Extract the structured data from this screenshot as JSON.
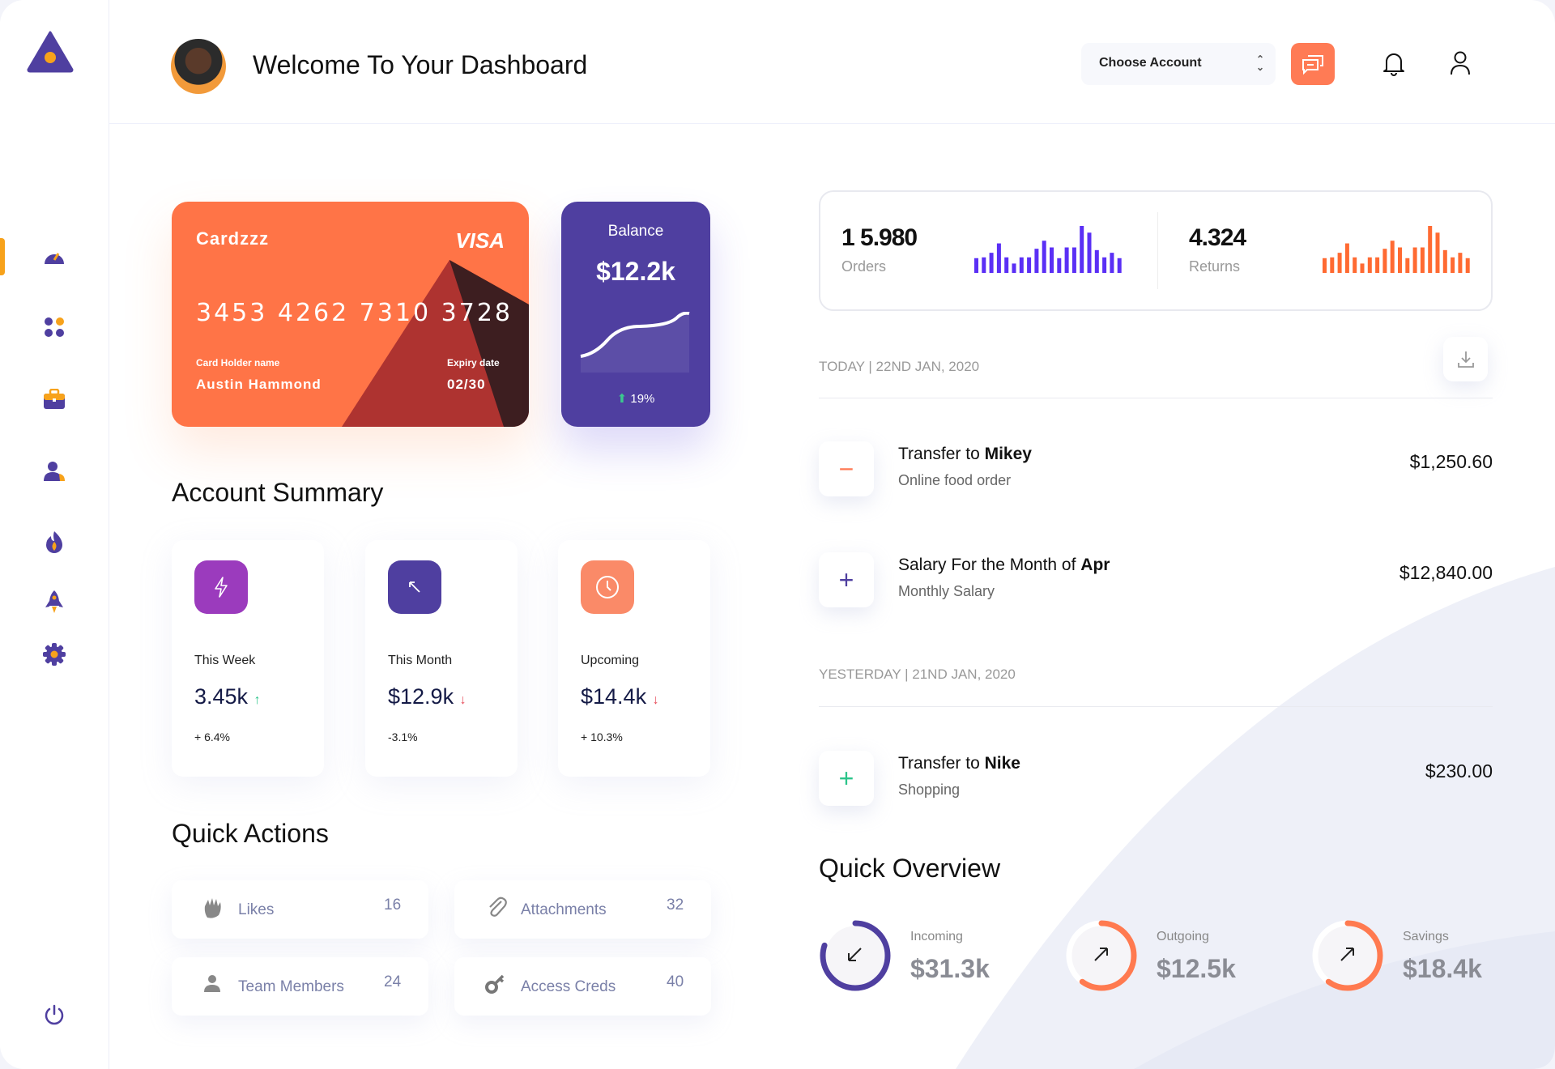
{
  "header": {
    "title": "Welcome To Your Dashboard",
    "account_select": "Choose Account"
  },
  "sidebar": {
    "items": [
      "dashboard-icon",
      "apps-icon",
      "briefcase-icon",
      "users-icon",
      "fire-icon",
      "rocket-icon",
      "settings-icon"
    ],
    "active": 0,
    "logout": "power-icon"
  },
  "card": {
    "name": "Cardzzz",
    "brand": "VISA",
    "number": "3453 4262 7310 3728",
    "holder_label": "Card Holder name",
    "holder": "Austin Hammond",
    "expiry_label": "Expiry date",
    "expiry": "02/30",
    "color": "#ff7447"
  },
  "balance": {
    "title": "Balance",
    "value": "$12.2k",
    "change": "19%",
    "color": "#4f3fa0"
  },
  "account_summary": {
    "title": "Account Summary",
    "items": [
      {
        "label": "This Week",
        "value": "3.45k",
        "trend": "up",
        "change": "+ 6.4%",
        "color": "#9b3bbd",
        "icon": "lightning-icon"
      },
      {
        "label": "This Month",
        "value": "$12.9k",
        "trend": "down",
        "change": "-3.1%",
        "color": "#4f3fa0",
        "icon": "arrow-up-left-icon"
      },
      {
        "label": "Upcoming",
        "value": "$14.4k",
        "trend": "down",
        "change": "+ 10.3%",
        "color": "#fa8a68",
        "icon": "clock-icon"
      }
    ]
  },
  "quick_actions": {
    "title": "Quick Actions",
    "items": [
      {
        "label": "Likes",
        "count": "16",
        "icon": "clap-icon"
      },
      {
        "label": "Attachments",
        "count": "32",
        "icon": "paperclip-icon"
      },
      {
        "label": "Team Members",
        "count": "24",
        "icon": "user-icon"
      },
      {
        "label": "Access Creds",
        "count": "40",
        "icon": "key-icon"
      }
    ]
  },
  "stats": {
    "orders": {
      "value": "1 5.980",
      "label": "Orders",
      "color": "#5a2ff5",
      "bars": [
        55,
        58,
        75,
        110,
        58,
        35,
        58,
        58,
        90,
        120,
        95,
        55,
        95,
        95,
        175,
        150,
        85,
        58,
        75,
        55
      ]
    },
    "returns": {
      "value": "4.324",
      "label": "Returns",
      "color": "#ff6a32",
      "bars": [
        55,
        58,
        75,
        110,
        58,
        35,
        58,
        58,
        90,
        120,
        95,
        55,
        95,
        95,
        175,
        150,
        85,
        58,
        75,
        55
      ]
    }
  },
  "transactions": {
    "groups": [
      {
        "date": "TODAY | 22ND JAN, 2020",
        "items": [
          {
            "sign": "−",
            "sign_color": "#ff7a55",
            "title": "Transfer to ",
            "bold": "Mikey",
            "sub": "Online food order",
            "amount": "$1,250.60"
          },
          {
            "sign": "+",
            "sign_color": "#4f3fa0",
            "title": "Salary For the Month of ",
            "bold": "Apr",
            "sub": "Monthly Salary",
            "amount": "$12,840.00"
          }
        ]
      },
      {
        "date": "YESTERDAY | 21ND JAN, 2020",
        "items": [
          {
            "sign": "+",
            "sign_color": "#2bc48a",
            "title": "Transfer to ",
            "bold": "Nike",
            "sub": "Shopping",
            "amount": "$230.00"
          }
        ]
      }
    ]
  },
  "quick_overview": {
    "title": "Quick Overview",
    "items": [
      {
        "label": "Incoming",
        "value": "$31.3k",
        "progress": 0.8,
        "color": "#4f3fa0",
        "icon": "arrow-down-left-icon"
      },
      {
        "label": "Outgoing",
        "value": "$12.5k",
        "progress": 0.6,
        "color": "#ff7a50",
        "icon": "arrow-up-right-icon"
      },
      {
        "label": "Savings",
        "value": "$18.4k",
        "progress": 0.6,
        "color": "#ff7a50",
        "icon": "arrow-up-right-icon"
      }
    ]
  }
}
